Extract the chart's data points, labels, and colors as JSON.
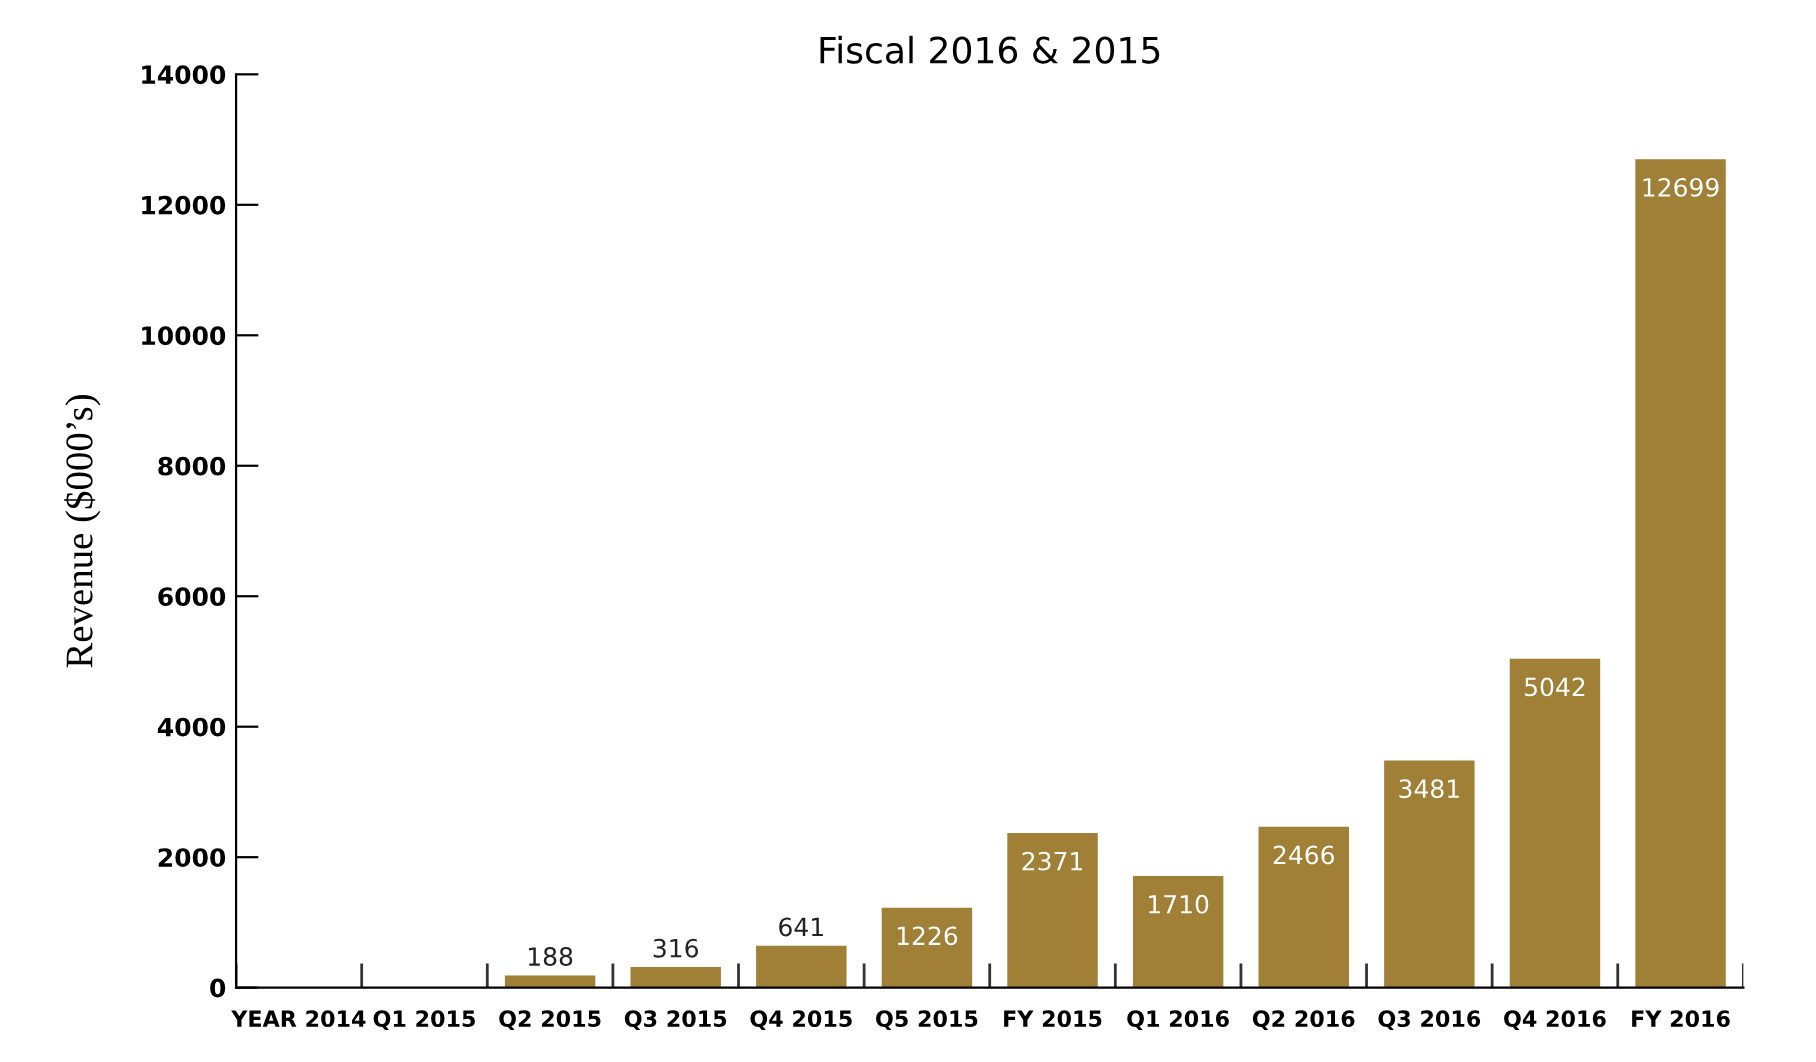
{
  "chart_data": {
    "type": "bar",
    "title": "Fiscal 2016 & 2015",
    "ylabel": "Revenue ($000’s)",
    "categories": [
      "YEAR 2014",
      "Q1 2015",
      "Q2 2015",
      "Q3 2015",
      "Q4 2015",
      "Q5 2015",
      "FY 2015",
      "Q1 2016",
      "Q2 2016",
      "Q3 2016",
      "Q4 2016",
      "FY 2016"
    ],
    "values": [
      null,
      null,
      188,
      316,
      641,
      1226,
      2371,
      1710,
      2466,
      3481,
      5042,
      12699
    ],
    "color": "#a07f37",
    "ylim": [
      0,
      14000
    ],
    "yticks": [
      0,
      2000,
      4000,
      6000,
      8000,
      10000,
      12000,
      14000
    ],
    "grid": false,
    "data_labels": true
  }
}
